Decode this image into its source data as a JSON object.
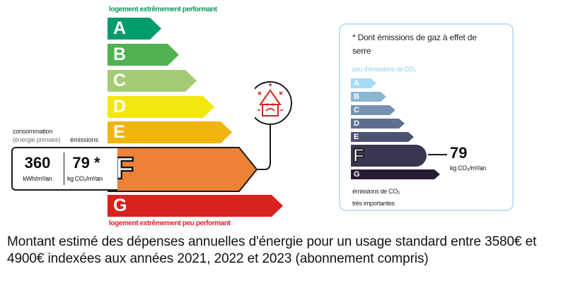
{
  "energy_scale": {
    "top_caption": "logement extrêmement performant",
    "bottom_caption": "logement extrêmement peu performant",
    "classes": [
      {
        "letter": "A",
        "color": "#009c6d"
      },
      {
        "letter": "B",
        "color": "#52b153"
      },
      {
        "letter": "C",
        "color": "#a5cc74"
      },
      {
        "letter": "D",
        "color": "#f4e70f"
      },
      {
        "letter": "E",
        "color": "#f0b50f"
      },
      {
        "letter": "F",
        "color": "#eb8235"
      },
      {
        "letter": "G",
        "color": "#d7221f"
      }
    ],
    "current_class": "F",
    "icon": "house-frowning-icon"
  },
  "values": {
    "consumption_label": "consommation",
    "consumption_sublabel": "(énergie primaire)",
    "emissions_label": "émissions",
    "consumption_value": "360",
    "consumption_unit": "kWh/m²/an",
    "emissions_value": "79 *",
    "emissions_unit": "kg CO₂/m²/an"
  },
  "ges_panel": {
    "title": "* Dont émissions de gaz à effet de serre",
    "top_caption": "peu d'émissions de CO₂",
    "classes": [
      {
        "letter": "A",
        "color": "#a4dbf8"
      },
      {
        "letter": "B",
        "color": "#8cb4d3"
      },
      {
        "letter": "C",
        "color": "#7792b1"
      },
      {
        "letter": "D",
        "color": "#606f8f"
      },
      {
        "letter": "E",
        "color": "#4d5271"
      },
      {
        "letter": "F",
        "color": "#3a3550"
      },
      {
        "letter": "G",
        "color": "#281b35"
      }
    ],
    "current_class": "F",
    "value": "79",
    "unit": "kg CO₂/m²/an",
    "bottom_caption_line1": "émissions de CO₂",
    "bottom_caption_line2": "très importantes"
  },
  "footer_text": "Montant estimé des dépenses annuelles d'énergie pour un usage standard entre 3580€ et 4900€ indexées aux années 2021, 2022 et 2023 (abonnement compris)"
}
